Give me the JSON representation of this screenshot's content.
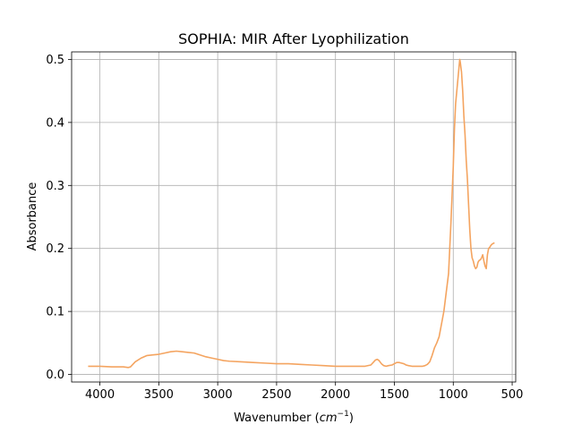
{
  "chart_data": {
    "type": "line",
    "title": "SOPHIA: MIR After Lyophilization",
    "xlabel_prefix": "Wavenumber (",
    "xlabel_math": "cm",
    "xlabel_sup": "−1",
    "xlabel_suffix": ")",
    "ylabel": "Absorbance",
    "xlim": [
      4240,
      470
    ],
    "ylim": [
      -0.012,
      0.512
    ],
    "x_reversed": true,
    "grid": true,
    "x_ticks": [
      4000,
      3500,
      3000,
      2500,
      2000,
      1500,
      1000,
      500
    ],
    "y_ticks": [
      0.0,
      0.1,
      0.2,
      0.3,
      0.4,
      0.5
    ],
    "x_tick_labels": [
      "4000",
      "3500",
      "3000",
      "2500",
      "2000",
      "1500",
      "1000",
      "500"
    ],
    "y_tick_labels": [
      "0.0",
      "0.1",
      "0.2",
      "0.3",
      "0.4",
      "0.5"
    ],
    "series": [
      {
        "color": "#f4a460",
        "x": [
          4100,
          4000,
          3900,
          3800,
          3760,
          3740,
          3700,
          3650,
          3600,
          3550,
          3500,
          3450,
          3400,
          3350,
          3300,
          3250,
          3200,
          3150,
          3100,
          3050,
          3000,
          2950,
          2900,
          2800,
          2700,
          2600,
          2500,
          2400,
          2300,
          2200,
          2100,
          2000,
          1900,
          1800,
          1750,
          1700,
          1680,
          1660,
          1645,
          1630,
          1610,
          1590,
          1570,
          1550,
          1520,
          1500,
          1480,
          1460,
          1440,
          1420,
          1400,
          1380,
          1350,
          1320,
          1300,
          1280,
          1260,
          1240,
          1220,
          1200,
          1180,
          1160,
          1140,
          1120,
          1100,
          1080,
          1060,
          1040,
          1020,
          1000,
          990,
          980,
          970,
          960,
          950,
          945,
          940,
          930,
          920,
          910,
          900,
          890,
          880,
          870,
          860,
          850,
          840,
          830,
          820,
          810,
          800,
          790,
          780,
          770,
          760,
          750,
          740,
          730,
          720,
          710,
          700,
          690,
          680,
          670,
          660,
          650
        ],
        "y": [
          0.013,
          0.013,
          0.012,
          0.012,
          0.011,
          0.012,
          0.02,
          0.026,
          0.03,
          0.031,
          0.032,
          0.034,
          0.036,
          0.037,
          0.036,
          0.035,
          0.034,
          0.031,
          0.028,
          0.026,
          0.024,
          0.022,
          0.021,
          0.02,
          0.019,
          0.018,
          0.017,
          0.017,
          0.016,
          0.015,
          0.014,
          0.013,
          0.013,
          0.013,
          0.013,
          0.015,
          0.019,
          0.023,
          0.024,
          0.022,
          0.017,
          0.014,
          0.013,
          0.014,
          0.015,
          0.017,
          0.019,
          0.019,
          0.018,
          0.017,
          0.015,
          0.014,
          0.013,
          0.013,
          0.013,
          0.013,
          0.013,
          0.014,
          0.016,
          0.02,
          0.03,
          0.042,
          0.05,
          0.06,
          0.08,
          0.1,
          0.13,
          0.16,
          0.24,
          0.33,
          0.39,
          0.43,
          0.45,
          0.47,
          0.49,
          0.5,
          0.495,
          0.48,
          0.45,
          0.41,
          0.38,
          0.34,
          0.31,
          0.27,
          0.23,
          0.2,
          0.185,
          0.18,
          0.172,
          0.168,
          0.17,
          0.178,
          0.181,
          0.182,
          0.185,
          0.19,
          0.18,
          0.172,
          0.168,
          0.19,
          0.2,
          0.202,
          0.205,
          0.207,
          0.208,
          0.209
        ]
      }
    ]
  }
}
